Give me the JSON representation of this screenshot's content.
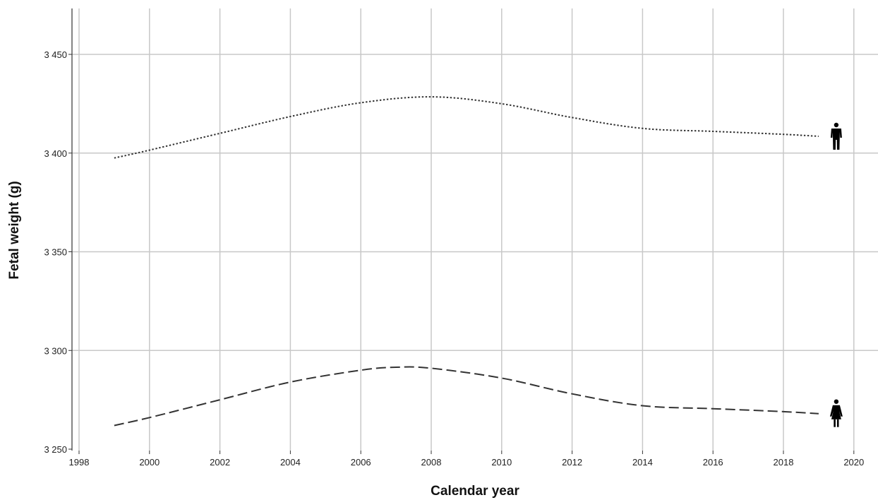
{
  "chart_data": {
    "type": "line",
    "title": "",
    "xlabel": "Calendar year",
    "ylabel": "Fetal weight (g)",
    "xlim": [
      1998,
      2020.7
    ],
    "ylim": [
      3250,
      3473
    ],
    "x_ticks": [
      1998,
      2000,
      2002,
      2004,
      2006,
      2008,
      2010,
      2012,
      2014,
      2016,
      2018,
      2020
    ],
    "x_tick_labels": [
      "1998",
      "2000",
      "2002",
      "2004",
      "2006",
      "2008",
      "2010",
      "2012",
      "2014",
      "2016",
      "2018",
      "2020"
    ],
    "y_ticks": [
      3250,
      3300,
      3350,
      3400,
      3450
    ],
    "y_tick_labels": [
      "3 250",
      "3 300",
      "3 350",
      "3 400",
      "3 450"
    ],
    "grid": true,
    "legend": "icons at line ends",
    "series": [
      {
        "icon": "male-person-icon",
        "line_style": "dotted",
        "color": "#333333",
        "x": [
          1999,
          2000,
          2002,
          2004,
          2006,
          2008,
          2010,
          2012,
          2014,
          2016,
          2018,
          2019
        ],
        "y": [
          3397.5,
          3401.5,
          3410,
          3418.5,
          3425.5,
          3428.5,
          3425,
          3418,
          3412.5,
          3411,
          3409.5,
          3408.5
        ]
      },
      {
        "icon": "female-person-icon",
        "line_style": "dashed",
        "color": "#333333",
        "x": [
          1999,
          2000,
          2002,
          2004,
          2006,
          2007,
          2008,
          2010,
          2012,
          2014,
          2016,
          2018,
          2019
        ],
        "y": [
          3262,
          3266,
          3275,
          3284,
          3290,
          3291.5,
          3291,
          3286,
          3278,
          3272,
          3270.5,
          3269,
          3268
        ]
      }
    ]
  }
}
